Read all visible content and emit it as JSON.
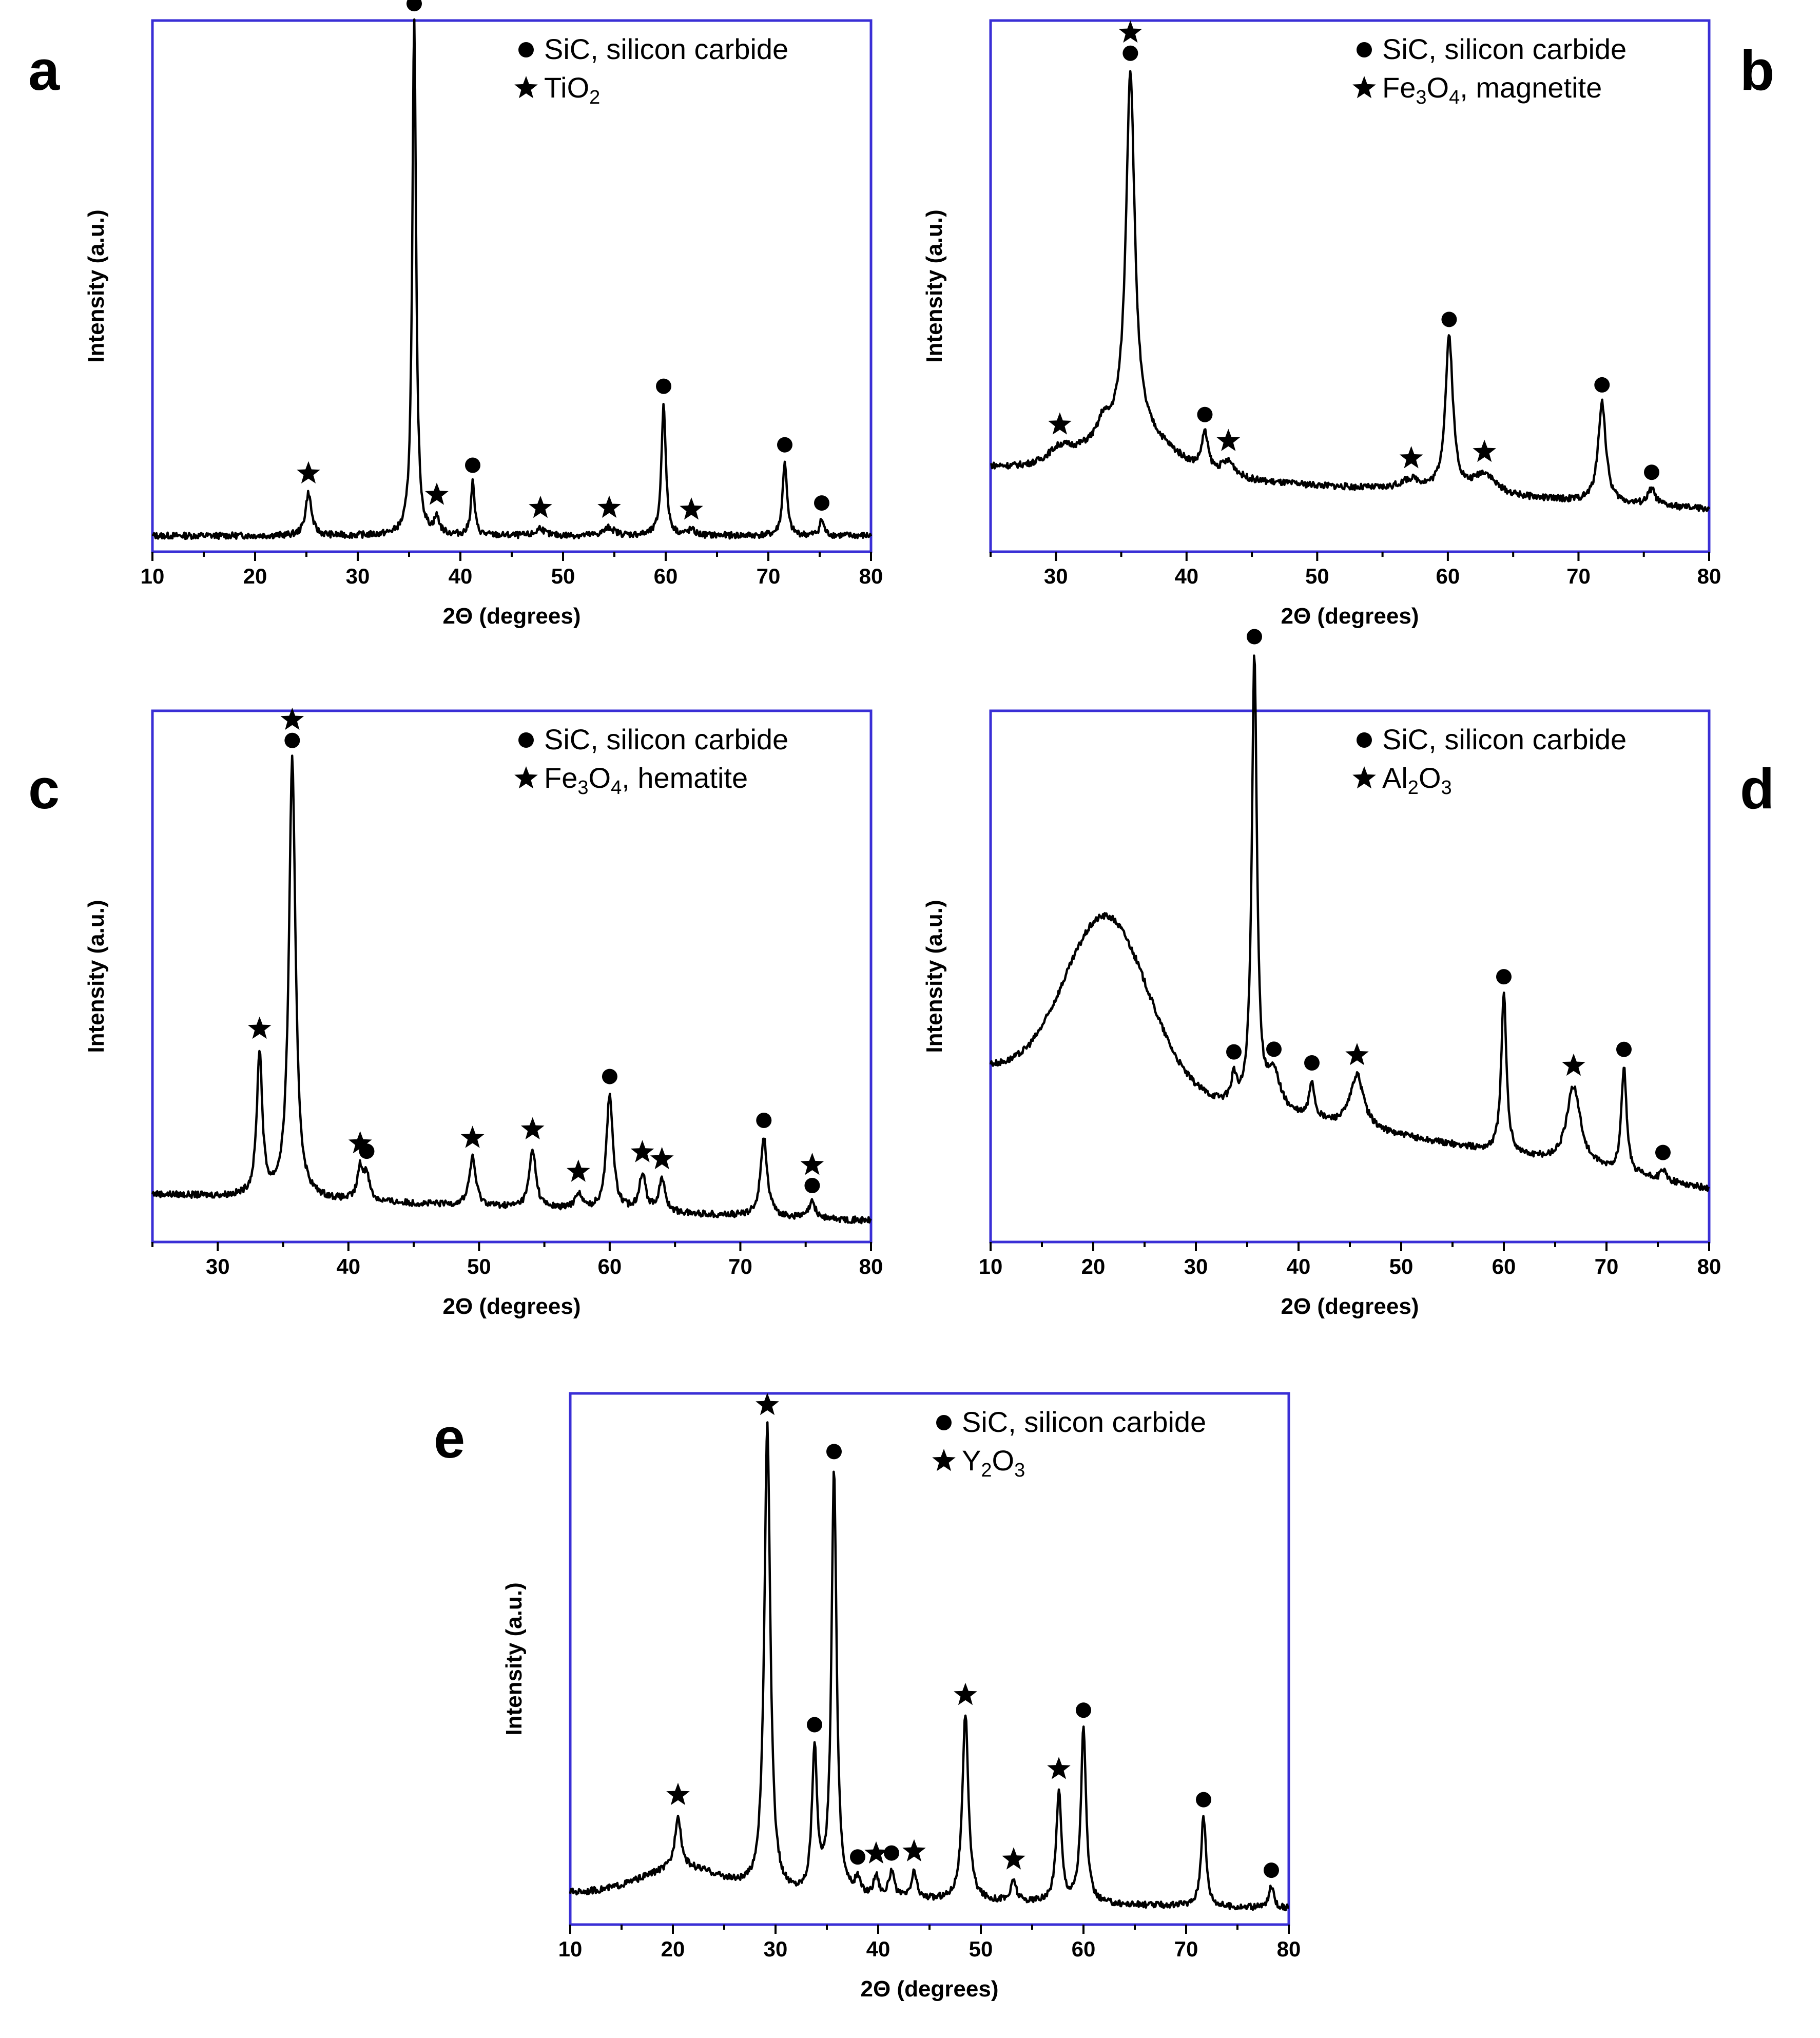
{
  "figure": {
    "colors": {
      "frame": "#3a2fd6",
      "line": "#000000",
      "marker": "#000000"
    }
  },
  "chart_data": [
    {
      "type": "line",
      "panel_label": "a",
      "xlabel": "2Θ (degrees)",
      "ylabel": "Intensity (a.u.)",
      "xlim": [
        10,
        80
      ],
      "xticks": [
        "10",
        "20",
        "30",
        "40",
        "50",
        "60",
        "70",
        "80"
      ],
      "legend": [
        {
          "marker": "circle",
          "text": "SiC, silicon carbide"
        },
        {
          "marker": "star",
          "parts": [
            "TiO",
            "2",
            ""
          ]
        }
      ],
      "baseline": {
        "start": 0.03,
        "end": 0.03,
        "hump": null
      },
      "peaks": [
        {
          "x": 25.2,
          "h": 0.08,
          "w": 0.35,
          "marker": "star"
        },
        {
          "x": 35.5,
          "h": 0.97,
          "w": 0.22,
          "marker": "circle"
        },
        {
          "x": 37.7,
          "h": 0.03,
          "w": 0.3,
          "marker": "star"
        },
        {
          "x": 41.2,
          "h": 0.1,
          "w": 0.22,
          "marker": "circle"
        },
        {
          "x": 47.8,
          "h": 0.015,
          "w": 0.4,
          "marker": "star"
        },
        {
          "x": 54.5,
          "h": 0.015,
          "w": 0.6,
          "marker": "star"
        },
        {
          "x": 59.8,
          "h": 0.25,
          "w": 0.25,
          "marker": "circle"
        },
        {
          "x": 62.5,
          "h": 0.01,
          "w": 0.4,
          "marker": "star"
        },
        {
          "x": 71.6,
          "h": 0.14,
          "w": 0.25,
          "marker": "circle"
        },
        {
          "x": 75.2,
          "h": 0.03,
          "w": 0.25,
          "marker": "circle"
        }
      ]
    },
    {
      "type": "line",
      "panel_label": "b",
      "xlabel": "2Θ (degrees)",
      "ylabel": "Intensity (a.u.)",
      "xlim": [
        25,
        80
      ],
      "xticks": [
        "30",
        "40",
        "50",
        "60",
        "70",
        "80"
      ],
      "legend": [
        {
          "marker": "circle",
          "text": "SiC, silicon carbide"
        },
        {
          "marker": "star",
          "parts": [
            "Fe",
            "3",
            "O",
            "4",
            ", magnetite"
          ]
        }
      ],
      "baseline": {
        "start": 0.16,
        "end": 0.08,
        "hump": {
          "x": 35.7,
          "h": 0.08,
          "w": 3.0
        }
      },
      "peaks": [
        {
          "x": 30.3,
          "h": 0.03,
          "w": 1.2,
          "marker": "star"
        },
        {
          "x": 33.6,
          "h": 0.03,
          "w": 0.4,
          "marker": null
        },
        {
          "x": 35.7,
          "h": 0.68,
          "w": 0.4,
          "marker": "both"
        },
        {
          "x": 41.4,
          "h": 0.07,
          "w": 0.3,
          "marker": "circle"
        },
        {
          "x": 43.2,
          "h": 0.03,
          "w": 0.7,
          "marker": "star"
        },
        {
          "x": 57.2,
          "h": 0.02,
          "w": 1.0,
          "marker": "star"
        },
        {
          "x": 60.1,
          "h": 0.29,
          "w": 0.35,
          "marker": "circle"
        },
        {
          "x": 62.8,
          "h": 0.04,
          "w": 1.0,
          "marker": "star"
        },
        {
          "x": 71.8,
          "h": 0.19,
          "w": 0.35,
          "marker": "circle"
        },
        {
          "x": 75.6,
          "h": 0.03,
          "w": 0.35,
          "marker": "circle"
        }
      ]
    },
    {
      "type": "line",
      "panel_label": "c",
      "xlabel": "2Θ (degrees)",
      "ylabel": "Intensity (a.u.)",
      "xlim": [
        25,
        80
      ],
      "xticks": [
        "30",
        "40",
        "50",
        "60",
        "70",
        "80"
      ],
      "legend": [
        {
          "marker": "circle",
          "text": "SiC, silicon carbide"
        },
        {
          "marker": "star",
          "parts": [
            "Fe",
            "3",
            "O",
            "4",
            ", hematite"
          ]
        }
      ],
      "baseline": {
        "start": 0.09,
        "end": 0.04,
        "hump": null
      },
      "peaks": [
        {
          "x": 33.2,
          "h": 0.27,
          "w": 0.25,
          "marker": "star"
        },
        {
          "x": 35.7,
          "h": 0.83,
          "w": 0.3,
          "marker": "both"
        },
        {
          "x": 40.9,
          "h": 0.06,
          "w": 0.25,
          "marker": "star"
        },
        {
          "x": 41.4,
          "h": 0.05,
          "w": 0.25,
          "marker": "circle"
        },
        {
          "x": 49.5,
          "h": 0.09,
          "w": 0.3,
          "marker": "star"
        },
        {
          "x": 54.1,
          "h": 0.11,
          "w": 0.3,
          "marker": "star"
        },
        {
          "x": 57.6,
          "h": 0.03,
          "w": 0.3,
          "marker": "star"
        },
        {
          "x": 60.0,
          "h": 0.22,
          "w": 0.3,
          "marker": "circle"
        },
        {
          "x": 62.5,
          "h": 0.07,
          "w": 0.3,
          "marker": "star"
        },
        {
          "x": 64.0,
          "h": 0.06,
          "w": 0.3,
          "marker": "star"
        },
        {
          "x": 71.8,
          "h": 0.15,
          "w": 0.3,
          "marker": "circle"
        },
        {
          "x": 75.5,
          "h": 0.03,
          "w": 0.3,
          "marker": "both"
        }
      ]
    },
    {
      "type": "line",
      "panel_label": "d",
      "xlabel": "2Θ (degrees)",
      "ylabel": "Intensity (a.u.)",
      "xlim": [
        10,
        80
      ],
      "xticks": [
        "10",
        "20",
        "30",
        "40",
        "50",
        "60",
        "70",
        "80"
      ],
      "legend": [
        {
          "marker": "circle",
          "text": "SiC, silicon carbide"
        },
        {
          "marker": "star",
          "parts": [
            "Al",
            "2",
            "O",
            "3",
            ""
          ]
        }
      ],
      "baseline": {
        "start": 0.33,
        "end": 0.1,
        "hump": {
          "x": 21.3,
          "h": 0.32,
          "w": 4.0
        }
      },
      "peaks": [
        {
          "x": 33.7,
          "h": 0.05,
          "w": 0.3,
          "marker": "circle"
        },
        {
          "x": 35.7,
          "h": 0.85,
          "w": 0.3,
          "marker": "circle"
        },
        {
          "x": 37.6,
          "h": 0.07,
          "w": 0.8,
          "marker": "circle"
        },
        {
          "x": 41.3,
          "h": 0.07,
          "w": 0.3,
          "marker": "circle"
        },
        {
          "x": 45.7,
          "h": 0.1,
          "w": 0.8,
          "marker": "star"
        },
        {
          "x": 60.0,
          "h": 0.3,
          "w": 0.3,
          "marker": "circle"
        },
        {
          "x": 66.8,
          "h": 0.15,
          "w": 0.8,
          "marker": "star"
        },
        {
          "x": 71.7,
          "h": 0.2,
          "w": 0.3,
          "marker": "circle"
        },
        {
          "x": 75.5,
          "h": 0.02,
          "w": 0.3,
          "marker": "circle"
        }
      ]
    },
    {
      "type": "line",
      "panel_label": "e",
      "xlabel": "2Θ (degrees)",
      "ylabel": "Intensity (a.u.)",
      "xlim": [
        10,
        80
      ],
      "xticks": [
        "10",
        "20",
        "30",
        "40",
        "50",
        "60",
        "70",
        "80"
      ],
      "legend": [
        {
          "marker": "circle",
          "text": "SiC, silicon carbide"
        },
        {
          "marker": "star",
          "parts": [
            "Y",
            "2",
            "O",
            "3",
            ""
          ]
        }
      ],
      "baseline": {
        "start": 0.06,
        "end": 0.03,
        "hump": {
          "x": 21.0,
          "h": 0.05,
          "w": 4.0
        }
      },
      "peaks": [
        {
          "x": 20.5,
          "h": 0.1,
          "w": 0.35,
          "marker": "star"
        },
        {
          "x": 29.2,
          "h": 0.88,
          "w": 0.35,
          "marker": "star"
        },
        {
          "x": 33.8,
          "h": 0.27,
          "w": 0.3,
          "marker": "circle"
        },
        {
          "x": 35.7,
          "h": 0.8,
          "w": 0.3,
          "marker": "circle"
        },
        {
          "x": 38.0,
          "h": 0.03,
          "w": 0.3,
          "marker": "circle"
        },
        {
          "x": 39.8,
          "h": 0.04,
          "w": 0.3,
          "marker": "star"
        },
        {
          "x": 41.3,
          "h": 0.05,
          "w": 0.3,
          "marker": "circle"
        },
        {
          "x": 43.5,
          "h": 0.05,
          "w": 0.3,
          "marker": "star"
        },
        {
          "x": 48.5,
          "h": 0.35,
          "w": 0.35,
          "marker": "star"
        },
        {
          "x": 53.2,
          "h": 0.04,
          "w": 0.3,
          "marker": "star"
        },
        {
          "x": 57.6,
          "h": 0.21,
          "w": 0.3,
          "marker": "star"
        },
        {
          "x": 60.0,
          "h": 0.33,
          "w": 0.3,
          "marker": "circle"
        },
        {
          "x": 71.7,
          "h": 0.17,
          "w": 0.3,
          "marker": "circle"
        },
        {
          "x": 78.3,
          "h": 0.04,
          "w": 0.3,
          "marker": "circle"
        }
      ]
    }
  ]
}
